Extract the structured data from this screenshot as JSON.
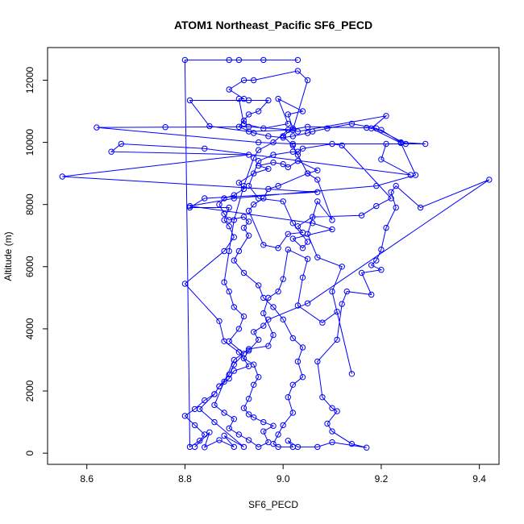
{
  "chart_data": {
    "type": "scatter",
    "title": "ATOM1 Northeast_Pacific SF6_PECD",
    "xlabel": "SF6_PECD",
    "ylabel": "Altitude (m)",
    "xlim": [
      8.52,
      9.44
    ],
    "ylim": [
      -360,
      13050
    ],
    "x_ticks": [
      8.6,
      8.8,
      9.0,
      9.2,
      9.4
    ],
    "x_tick_labels": [
      "8.6",
      "8.8",
      "9.0",
      "9.2",
      "9.4"
    ],
    "y_ticks": [
      0,
      2000,
      4000,
      6000,
      8000,
      10000,
      12000
    ],
    "y_tick_labels": [
      "0",
      "2000",
      "4000",
      "6000",
      "8000",
      "10000",
      "12000"
    ],
    "grid": false,
    "legend": "none",
    "series": [
      {
        "color": "#0000ff",
        "marker": "open-circle",
        "line": true,
        "points": [
          [
            8.82,
            200
          ],
          [
            8.85,
            670
          ],
          [
            8.84,
            190
          ],
          [
            8.87,
            420
          ],
          [
            8.9,
            200
          ],
          [
            8.88,
            560
          ],
          [
            8.92,
            200
          ],
          [
            8.86,
            1000
          ],
          [
            8.83,
            1420
          ],
          [
            8.86,
            1900
          ],
          [
            8.87,
            2150
          ],
          [
            8.89,
            2530
          ],
          [
            8.9,
            2850
          ],
          [
            8.92,
            3200
          ],
          [
            8.89,
            3600
          ],
          [
            8.91,
            4000
          ],
          [
            8.92,
            4400
          ],
          [
            8.9,
            4700
          ],
          [
            8.89,
            5200
          ],
          [
            8.88,
            5500
          ],
          [
            8.89,
            6500
          ],
          [
            8.9,
            7500
          ],
          [
            8.92,
            8600
          ],
          [
            8.94,
            9500
          ],
          [
            8.95,
            9750
          ],
          [
            8.98,
            10000
          ],
          [
            9.01,
            10400
          ],
          [
            9.05,
            10500
          ],
          [
            9.17,
            10470
          ],
          [
            9.2,
            10400
          ],
          [
            9.24,
            10000
          ],
          [
            9.29,
            9950
          ],
          [
            9.02,
            9950
          ],
          [
            8.95,
            10000
          ],
          [
            8.62,
            10480
          ],
          [
            8.76,
            10490
          ],
          [
            8.93,
            10500
          ],
          [
            9.02,
            10400
          ],
          [
            9.03,
            10350
          ],
          [
            9.21,
            10850
          ],
          [
            9.18,
            10450
          ],
          [
            9.24,
            9980
          ],
          [
            9.27,
            8950
          ],
          [
            9.19,
            8600
          ],
          [
            8.9,
            8200
          ],
          [
            8.81,
            7950
          ],
          [
            9.06,
            7400
          ],
          [
            9.1,
            7200
          ],
          [
            9.02,
            6900
          ],
          [
            9.04,
            6600
          ],
          [
            9.05,
            6800
          ],
          [
            9.02,
            7400
          ],
          [
            9.0,
            8100
          ],
          [
            8.95,
            8200
          ],
          [
            8.93,
            8600
          ],
          [
            8.95,
            9400
          ],
          [
            8.98,
            9600
          ],
          [
            9.02,
            9700
          ],
          [
            9.03,
            9700
          ],
          [
            9.04,
            9800
          ],
          [
            9.1,
            9950
          ],
          [
            9.12,
            9900
          ],
          [
            9.22,
            8200
          ],
          [
            9.19,
            7950
          ],
          [
            9.16,
            7650
          ],
          [
            9.06,
            7600
          ],
          [
            9.03,
            7300
          ],
          [
            9.04,
            7100
          ],
          [
            9.01,
            7050
          ],
          [
            8.99,
            6600
          ],
          [
            8.96,
            6700
          ],
          [
            8.93,
            7800
          ],
          [
            8.94,
            8000
          ],
          [
            8.96,
            8200
          ],
          [
            8.97,
            8500
          ],
          [
            8.99,
            8600
          ],
          [
            9.05,
            9000
          ],
          [
            9.07,
            9100
          ],
          [
            9.03,
            9400
          ],
          [
            9.01,
            9200
          ],
          [
            9.0,
            9300
          ],
          [
            8.98,
            9350
          ],
          [
            8.95,
            9250
          ],
          [
            8.97,
            9150
          ],
          [
            8.94,
            9000
          ],
          [
            8.91,
            8700
          ],
          [
            8.92,
            8500
          ],
          [
            8.9,
            8300
          ],
          [
            8.88,
            8200
          ],
          [
            8.87,
            8000
          ],
          [
            8.88,
            7700
          ],
          [
            8.89,
            7500
          ],
          [
            8.92,
            7600
          ],
          [
            8.93,
            7450
          ],
          [
            8.92,
            7250
          ],
          [
            8.93,
            7000
          ],
          [
            8.91,
            6500
          ],
          [
            8.9,
            6200
          ],
          [
            8.92,
            5800
          ],
          [
            8.95,
            5400
          ],
          [
            8.96,
            5000
          ],
          [
            8.98,
            4700
          ],
          [
            9.0,
            4300
          ],
          [
            9.02,
            3700
          ],
          [
            9.04,
            3400
          ],
          [
            9.03,
            2950
          ],
          [
            9.04,
            2450
          ],
          [
            9.02,
            2200
          ],
          [
            9.01,
            1800
          ],
          [
            9.02,
            1300
          ],
          [
            9.0,
            900
          ],
          [
            8.99,
            600
          ],
          [
            8.98,
            300
          ],
          [
            8.99,
            200
          ],
          [
            9.02,
            200
          ],
          [
            9.01,
            400
          ],
          [
            9.03,
            200
          ],
          [
            9.07,
            200
          ],
          [
            9.1,
            350
          ],
          [
            9.17,
            180
          ],
          [
            9.14,
            300
          ],
          [
            9.1,
            700
          ],
          [
            9.09,
            950
          ],
          [
            9.11,
            1350
          ],
          [
            9.1,
            1450
          ],
          [
            9.08,
            1800
          ],
          [
            9.07,
            2950
          ],
          [
            9.11,
            3650
          ],
          [
            9.12,
            4800
          ],
          [
            9.13,
            5200
          ],
          [
            9.18,
            5100
          ],
          [
            9.16,
            5800
          ],
          [
            9.2,
            5900
          ],
          [
            9.18,
            6050
          ],
          [
            9.19,
            6200
          ],
          [
            9.2,
            6550
          ],
          [
            9.21,
            7250
          ],
          [
            9.23,
            7900
          ],
          [
            9.22,
            8400
          ],
          [
            9.23,
            8600
          ],
          [
            9.28,
            7900
          ],
          [
            9.42,
            8800
          ],
          [
            9.05,
            4820
          ],
          [
            8.97,
            4300
          ],
          [
            8.96,
            4100
          ],
          [
            8.94,
            3900
          ],
          [
            8.95,
            3650
          ],
          [
            8.93,
            3300
          ],
          [
            8.92,
            3050
          ],
          [
            8.94,
            2850
          ],
          [
            8.95,
            2450
          ],
          [
            8.94,
            2200
          ],
          [
            8.93,
            1750
          ],
          [
            8.92,
            1450
          ],
          [
            8.93,
            1250
          ],
          [
            8.94,
            1150
          ],
          [
            8.96,
            1000
          ],
          [
            8.98,
            880
          ],
          [
            8.96,
            700
          ],
          [
            8.97,
            350
          ],
          [
            8.95,
            200
          ],
          [
            8.93,
            420
          ],
          [
            8.91,
            600
          ],
          [
            8.89,
            800
          ],
          [
            8.9,
            1100
          ],
          [
            8.88,
            1300
          ],
          [
            8.86,
            1550
          ],
          [
            8.88,
            2300
          ],
          [
            8.9,
            3000
          ],
          [
            8.93,
            3350
          ],
          [
            8.97,
            3450
          ],
          [
            8.98,
            3800
          ],
          [
            8.96,
            4500
          ],
          [
            8.97,
            5000
          ],
          [
            8.99,
            5200
          ],
          [
            9.0,
            5600
          ],
          [
            9.01,
            6550
          ],
          [
            9.05,
            6250
          ],
          [
            9.04,
            5650
          ],
          [
            9.03,
            4750
          ],
          [
            9.08,
            4200
          ],
          [
            9.11,
            4550
          ],
          [
            9.14,
            2550
          ],
          [
            9.1,
            5200
          ],
          [
            9.12,
            6000
          ],
          [
            9.07,
            6300
          ],
          [
            9.05,
            7050
          ],
          [
            9.07,
            8100
          ],
          [
            9.1,
            7500
          ],
          [
            9.07,
            8800
          ],
          [
            9.05,
            9000
          ],
          [
            9.03,
            9600
          ],
          [
            9.02,
            9900
          ],
          [
            9.0,
            10200
          ],
          [
            9.02,
            10450
          ],
          [
            9.01,
            10900
          ],
          [
            9.04,
            11000
          ],
          [
            8.99,
            11400
          ],
          [
            9.01,
            10600
          ],
          [
            8.96,
            10450
          ],
          [
            8.92,
            10600
          ],
          [
            8.91,
            11400
          ],
          [
            8.92,
            11400
          ],
          [
            8.89,
            11700
          ],
          [
            8.92,
            12000
          ],
          [
            8.94,
            12000
          ],
          [
            9.03,
            12300
          ],
          [
            9.05,
            12000
          ],
          [
            9.02,
            10400
          ],
          [
            8.93,
            10350
          ],
          [
            8.85,
            10520
          ],
          [
            8.81,
            11350
          ],
          [
            8.93,
            11350
          ],
          [
            8.97,
            11350
          ],
          [
            8.95,
            11000
          ],
          [
            8.93,
            10900
          ],
          [
            8.92,
            10700
          ],
          [
            8.91,
            10500
          ],
          [
            8.94,
            10300
          ],
          [
            8.97,
            10200
          ],
          [
            9.0,
            10150
          ],
          [
            9.02,
            10200
          ],
          [
            9.05,
            10300
          ],
          [
            9.06,
            10350
          ],
          [
            9.09,
            10450
          ],
          [
            9.14,
            10600
          ],
          [
            9.19,
            10450
          ],
          [
            9.25,
            9950
          ],
          [
            9.21,
            9950
          ],
          [
            9.2,
            9450
          ],
          [
            9.26,
            8950
          ],
          [
            8.84,
            9800
          ],
          [
            8.67,
            9950
          ],
          [
            8.65,
            9700
          ],
          [
            8.93,
            9600
          ],
          [
            8.55,
            8900
          ],
          [
            9.07,
            8400
          ],
          [
            8.84,
            8200
          ],
          [
            8.81,
            7900
          ],
          [
            8.89,
            7900
          ],
          [
            8.88,
            7500
          ],
          [
            8.89,
            7300
          ],
          [
            8.9,
            6950
          ],
          [
            8.88,
            6500
          ],
          [
            8.8,
            5450
          ],
          [
            8.87,
            4250
          ],
          [
            8.88,
            3600
          ],
          [
            8.91,
            3250
          ],
          [
            8.93,
            2800
          ],
          [
            8.9,
            2650
          ],
          [
            8.89,
            2400
          ],
          [
            8.87,
            2150
          ],
          [
            8.86,
            1900
          ],
          [
            8.84,
            1700
          ],
          [
            8.82,
            1420
          ],
          [
            8.8,
            1200
          ],
          [
            8.82,
            900
          ],
          [
            8.84,
            600
          ],
          [
            8.83,
            400
          ],
          [
            8.81,
            200
          ],
          [
            8.8,
            12650
          ],
          [
            8.89,
            12650
          ],
          [
            8.91,
            12650
          ],
          [
            8.96,
            12650
          ],
          [
            9.03,
            12650
          ]
        ]
      }
    ]
  }
}
